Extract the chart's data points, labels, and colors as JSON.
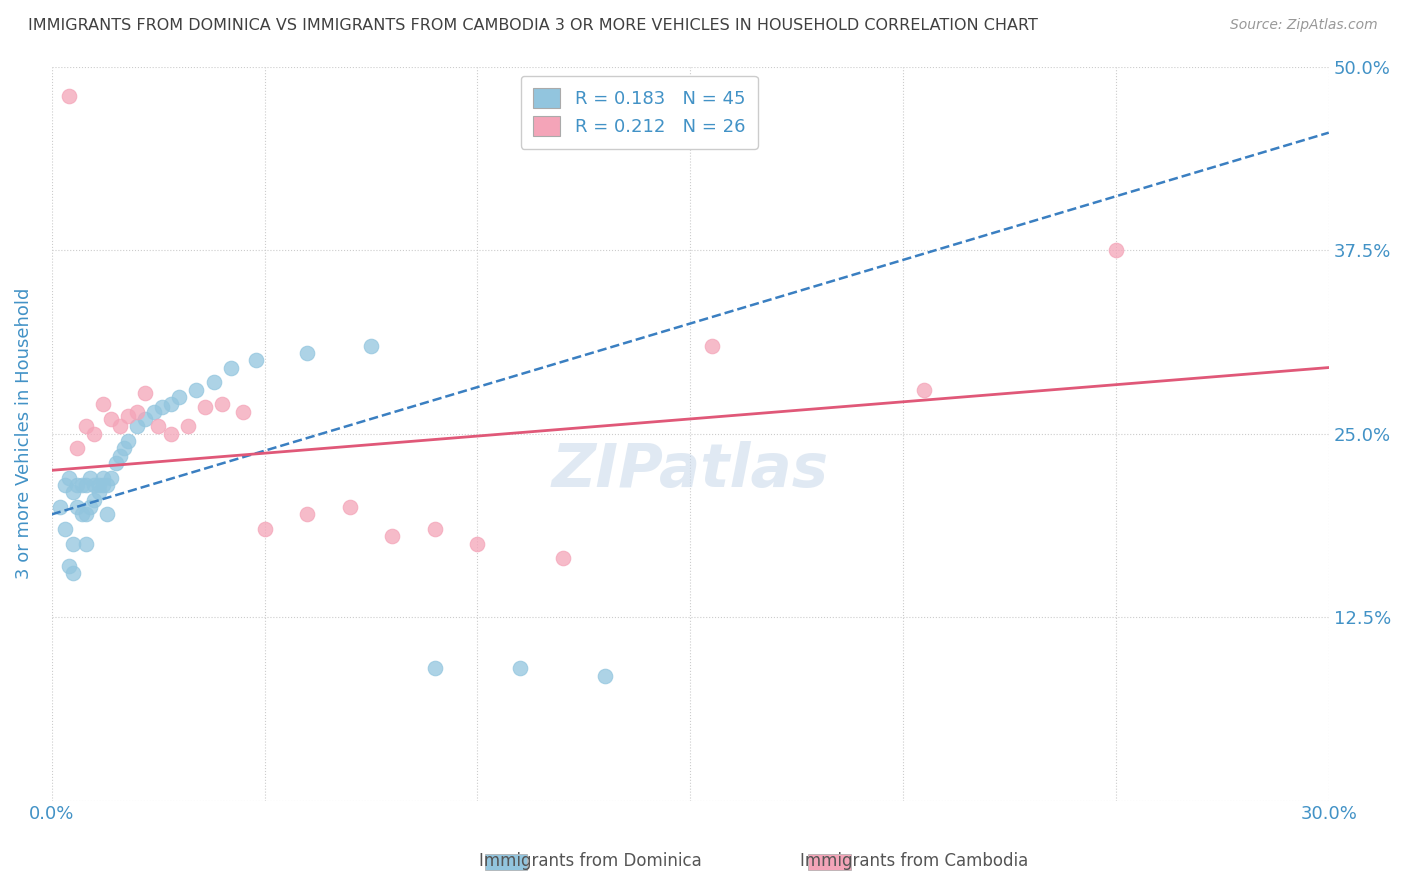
{
  "title": "IMMIGRANTS FROM DOMINICA VS IMMIGRANTS FROM CAMBODIA 3 OR MORE VEHICLES IN HOUSEHOLD CORRELATION CHART",
  "source": "Source: ZipAtlas.com",
  "ylabel": "3 or more Vehicles in Household",
  "xmin": 0.0,
  "xmax": 0.3,
  "ymin": 0.0,
  "ymax": 0.5,
  "dominica_color": "#92c5de",
  "cambodia_color": "#f4a4b8",
  "dominica_line_color": "#3a7fc1",
  "cambodia_line_color": "#e05878",
  "dominica_R": 0.183,
  "dominica_N": 45,
  "cambodia_R": 0.212,
  "cambodia_N": 26,
  "legend_label_dominica": "Immigrants from Dominica",
  "legend_label_cambodia": "Immigrants from Cambodia",
  "watermark": "ZIPatlas",
  "title_color": "#404040",
  "axis_label_color": "#4292c6",
  "tick_color": "#4292c6",
  "dominica_x": [
    0.002,
    0.003,
    0.003,
    0.004,
    0.004,
    0.005,
    0.005,
    0.005,
    0.006,
    0.006,
    0.007,
    0.007,
    0.008,
    0.008,
    0.008,
    0.009,
    0.009,
    0.01,
    0.01,
    0.011,
    0.011,
    0.012,
    0.012,
    0.013,
    0.013,
    0.014,
    0.015,
    0.016,
    0.017,
    0.018,
    0.02,
    0.022,
    0.024,
    0.026,
    0.028,
    0.03,
    0.034,
    0.038,
    0.042,
    0.048,
    0.06,
    0.075,
    0.09,
    0.11,
    0.13
  ],
  "dominica_y": [
    0.2,
    0.215,
    0.185,
    0.16,
    0.22,
    0.21,
    0.175,
    0.155,
    0.2,
    0.215,
    0.215,
    0.195,
    0.215,
    0.195,
    0.175,
    0.22,
    0.2,
    0.215,
    0.205,
    0.21,
    0.215,
    0.22,
    0.215,
    0.215,
    0.195,
    0.22,
    0.23,
    0.235,
    0.24,
    0.245,
    0.255,
    0.26,
    0.265,
    0.268,
    0.27,
    0.275,
    0.28,
    0.285,
    0.295,
    0.3,
    0.305,
    0.31,
    0.09,
    0.09,
    0.085
  ],
  "cambodia_x": [
    0.004,
    0.006,
    0.008,
    0.01,
    0.012,
    0.014,
    0.016,
    0.018,
    0.02,
    0.022,
    0.025,
    0.028,
    0.032,
    0.036,
    0.04,
    0.045,
    0.05,
    0.06,
    0.07,
    0.08,
    0.09,
    0.1,
    0.12,
    0.155,
    0.205,
    0.25
  ],
  "cambodia_y": [
    0.48,
    0.24,
    0.255,
    0.25,
    0.27,
    0.26,
    0.255,
    0.262,
    0.265,
    0.278,
    0.255,
    0.25,
    0.255,
    0.268,
    0.27,
    0.265,
    0.185,
    0.195,
    0.2,
    0.18,
    0.185,
    0.175,
    0.165,
    0.31,
    0.28,
    0.375
  ],
  "dom_line_x0": 0.0,
  "dom_line_y0": 0.195,
  "dom_line_x1": 0.3,
  "dom_line_y1": 0.455,
  "cam_line_x0": 0.0,
  "cam_line_y0": 0.225,
  "cam_line_x1": 0.3,
  "cam_line_y1": 0.295
}
